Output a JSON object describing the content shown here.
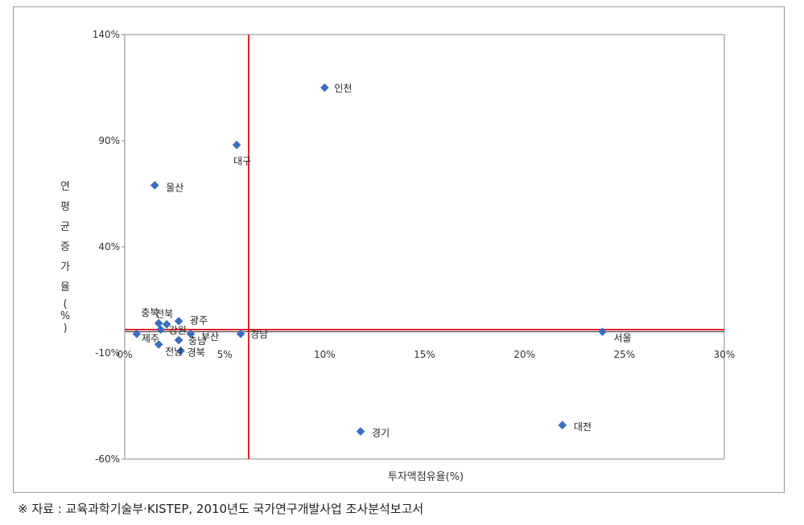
{
  "chart_data": {
    "type": "scatter",
    "title": "",
    "xlabel": "투자액점유율(%)",
    "ylabel": "연평균증가율(%)",
    "xlim": [
      0,
      30
    ],
    "ylim": [
      -60,
      140
    ],
    "x_ticks": [
      0,
      5,
      10,
      15,
      20,
      25,
      30
    ],
    "y_ticks": [
      140,
      90,
      40,
      -10,
      -60
    ],
    "x_tick_labels": [
      "0%",
      "5%",
      "10%",
      "15%",
      "20%",
      "25%",
      "30%"
    ],
    "y_tick_labels": [
      "140%",
      "90%",
      "40%",
      "-10%",
      "-60%"
    ],
    "marker_color": "#3A6FBF",
    "reference_line_color": "#E0202A",
    "reference_lines": {
      "x": 6.2,
      "y": 1
    },
    "points": [
      {
        "label": "인천",
        "x": 10.0,
        "y": 115
      },
      {
        "label": "대구",
        "x": 5.6,
        "y": 88
      },
      {
        "label": "울산",
        "x": 1.5,
        "y": 69
      },
      {
        "label": "충북",
        "x": 1.7,
        "y": 4
      },
      {
        "label": "전북",
        "x": 2.1,
        "y": 3.5
      },
      {
        "label": "광주",
        "x": 2.7,
        "y": 5
      },
      {
        "label": "강원",
        "x": 1.8,
        "y": 1
      },
      {
        "label": "제주",
        "x": 0.6,
        "y": -1
      },
      {
        "label": "충남",
        "x": 2.7,
        "y": -4
      },
      {
        "label": "부산",
        "x": 3.3,
        "y": -1
      },
      {
        "label": "전남",
        "x": 1.7,
        "y": -6
      },
      {
        "label": "경북",
        "x": 2.8,
        "y": -9
      },
      {
        "label": "경남",
        "x": 5.8,
        "y": -1
      },
      {
        "label": "서울",
        "x": 23.9,
        "y": 0
      },
      {
        "label": "경기",
        "x": 11.8,
        "y": -47
      },
      {
        "label": "대전",
        "x": 21.9,
        "y": -44
      }
    ]
  },
  "ylabel_chars": [
    "연",
    "평",
    "균",
    "증",
    "가",
    "율",
    "(",
    "%",
    ")"
  ],
  "footer": {
    "source_note": "※  자료 : 교육과학기술부·KISTEP, 2010년도 국가연구개발사업 조사분석보고서"
  }
}
